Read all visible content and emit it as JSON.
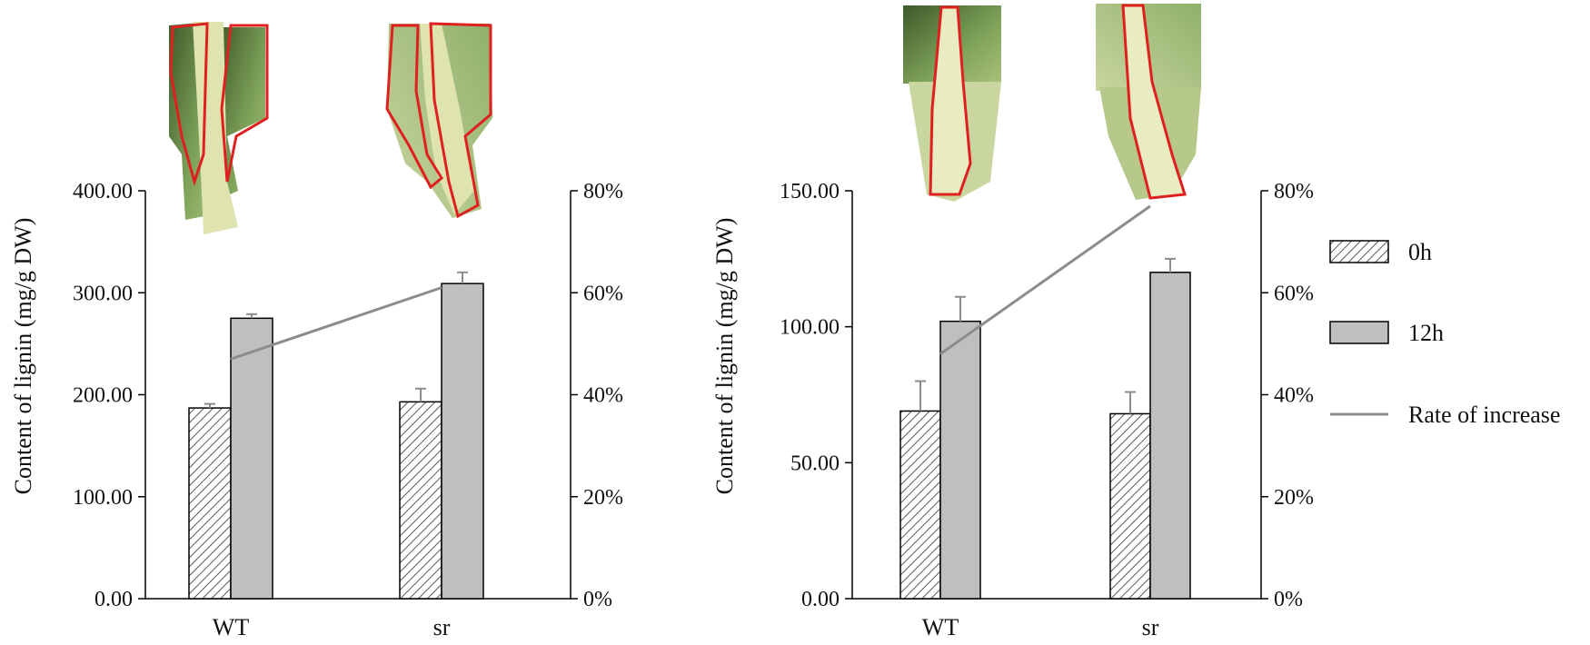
{
  "legend": {
    "items": [
      {
        "label": "0h",
        "kind": "bar-hatched"
      },
      {
        "label": "12h",
        "kind": "bar-solid"
      },
      {
        "label": "Rate of increase",
        "kind": "line"
      }
    ],
    "position": "right"
  },
  "colors": {
    "bar_fill": "#bfbfbf",
    "hatch_line": "#595959",
    "line": "#8c8c8c",
    "axis": "#000000",
    "leaf_outline": "#e02020",
    "leaf_green": "#7fa35a",
    "leaf_dark": "#3d5a2a",
    "midrib": "#dfe3b0"
  },
  "chart_data": [
    {
      "type": "bar",
      "ylabel": "Content of lignin (mg/g DW)",
      "categories": [
        "WT",
        "sr"
      ],
      "series": [
        {
          "name": "0h",
          "values": [
            187,
            193
          ],
          "errors": [
            4,
            13
          ]
        },
        {
          "name": "12h",
          "values": [
            275,
            309
          ],
          "errors": [
            4,
            11
          ]
        }
      ],
      "ylim": [
        0,
        400
      ],
      "yticks": [
        "0.00",
        "100.00",
        "200.00",
        "300.00",
        "400.00"
      ],
      "secondary_axis": {
        "ylim": [
          0,
          0.8
        ],
        "yticks": [
          "0%",
          "20%",
          "40%",
          "60%",
          "80%"
        ],
        "line": {
          "name": "Rate of increase",
          "values": [
            0.47,
            0.61
          ]
        }
      }
    },
    {
      "type": "bar",
      "ylabel": "Content of lignin (mg/g DW)",
      "categories": [
        "WT",
        "sr"
      ],
      "series": [
        {
          "name": "0h",
          "values": [
            69,
            68
          ],
          "errors": [
            11,
            8
          ]
        },
        {
          "name": "12h",
          "values": [
            102,
            120
          ],
          "errors": [
            9,
            5
          ]
        }
      ],
      "ylim": [
        0,
        150
      ],
      "yticks": [
        "0.00",
        "50.00",
        "100.00",
        "150.00"
      ],
      "secondary_axis": {
        "ylim": [
          0,
          0.8
        ],
        "yticks": [
          "0%",
          "20%",
          "40%",
          "60%",
          "80%"
        ],
        "line": {
          "name": "Rate of increase",
          "values": [
            0.48,
            0.77
          ]
        }
      }
    }
  ]
}
